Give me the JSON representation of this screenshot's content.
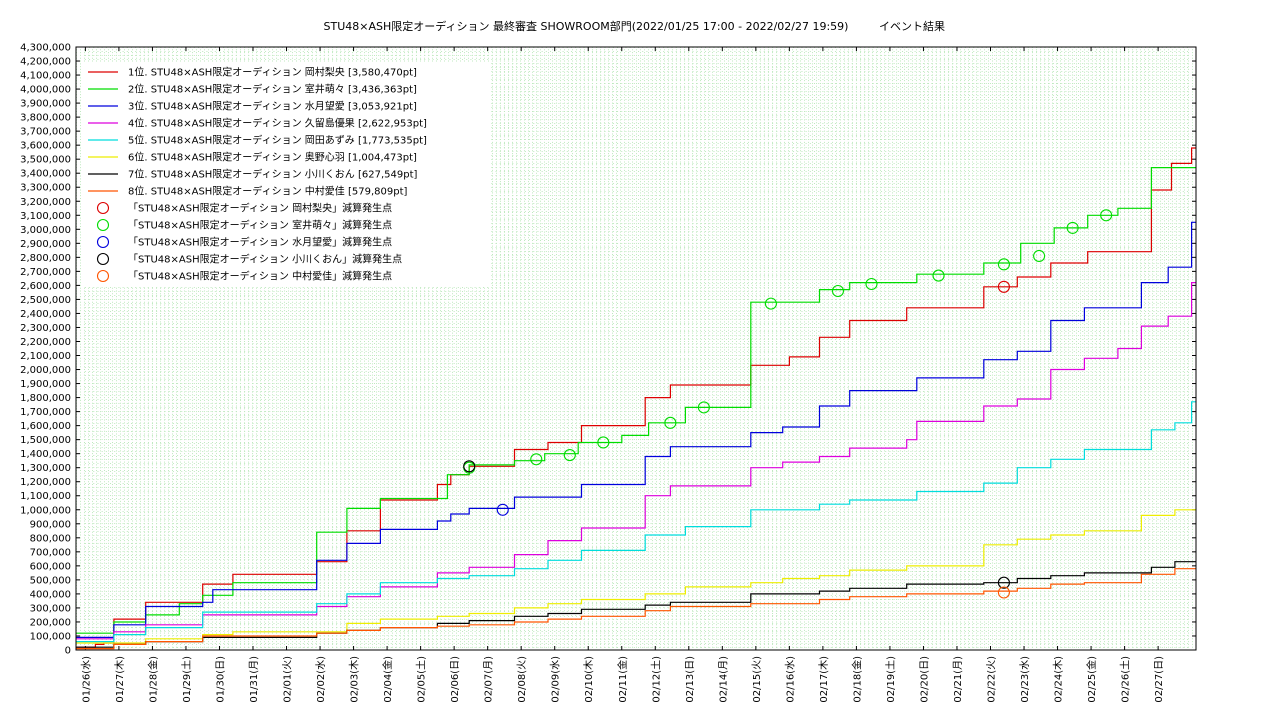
{
  "chart_data": {
    "type": "line",
    "title": "STU48×ASH限定オーディション 最終審査 SHOWROOM部門(2022/01/25 17:00 - 2022/02/27 19:59)",
    "subtitle": "イベント結果",
    "ylim": [
      0,
      4300000
    ],
    "yticks": [
      0,
      100000,
      200000,
      300000,
      400000,
      500000,
      600000,
      700000,
      800000,
      900000,
      1000000,
      1100000,
      1200000,
      1300000,
      1400000,
      1500000,
      1600000,
      1700000,
      1800000,
      1900000,
      2000000,
      2100000,
      2200000,
      2300000,
      2400000,
      2500000,
      2600000,
      2700000,
      2800000,
      2900000,
      3000000,
      3100000,
      3200000,
      3300000,
      3400000,
      3500000,
      3600000,
      3700000,
      3800000,
      3900000,
      4000000,
      4100000,
      4200000,
      4300000
    ],
    "ytick_labels": [
      "0",
      "100,000",
      "200,000",
      "300,000",
      "400,000",
      "500,000",
      "600,000",
      "700,000",
      "800,000",
      "900,000",
      "1,000,000",
      "1,100,000",
      "1,200,000",
      "1,300,000",
      "1,400,000",
      "1,500,000",
      "1,600,000",
      "1,700,000",
      "1,800,000",
      "1,900,000",
      "2,000,000",
      "2,100,000",
      "2,200,000",
      "2,300,000",
      "2,400,000",
      "2,500,000",
      "2,600,000",
      "2,700,000",
      "2,800,000",
      "2,900,000",
      "3,000,000",
      "3,100,000",
      "3,200,000",
      "3,300,000",
      "3,400,000",
      "3,500,000",
      "3,600,000",
      "3,700,000",
      "3,800,000",
      "3,900,000",
      "4,000,000",
      "4,100,000",
      "4,200,000",
      "4,300,000"
    ],
    "xlim": [
      -0.28,
      33.13
    ],
    "xtick_labels": [
      "01/26(水)",
      "01/27(木)",
      "01/28(金)",
      "01/29(土)",
      "01/30(日)",
      "01/31(月)",
      "02/01(火)",
      "02/02(水)",
      "02/03(木)",
      "02/04(金)",
      "02/05(土)",
      "02/06(日)",
      "02/07(月)",
      "02/08(火)",
      "02/09(水)",
      "02/10(木)",
      "02/11(金)",
      "02/12(土)",
      "02/13(日)",
      "02/14(月)",
      "02/15(火)",
      "02/16(水)",
      "02/17(木)",
      "02/18(金)",
      "02/19(土)",
      "02/20(日)",
      "02/21(月)",
      "02/22(火)",
      "02/23(水)",
      "02/24(木)",
      "02/25(金)",
      "02/26(土)",
      "02/27(日)"
    ],
    "grid": true,
    "legend_position": "top-left",
    "series": [
      {
        "name": "1位. STU48×ASH限定オーディション 岡村梨央 [3,580,470pt]",
        "color": "#dd0000",
        "points": [
          [
            -0.28,
            20000
          ],
          [
            0.3,
            40000
          ],
          [
            0.55,
            50000
          ],
          [
            0.85,
            220000
          ],
          [
            1.8,
            340000
          ],
          [
            3.5,
            470000
          ],
          [
            4.4,
            540000
          ],
          [
            6.9,
            630000
          ],
          [
            7.8,
            850000
          ],
          [
            8.8,
            1070000
          ],
          [
            10.5,
            1180000
          ],
          [
            10.9,
            1250000
          ],
          [
            11.45,
            1310000
          ],
          [
            12.8,
            1430000
          ],
          [
            13.8,
            1480000
          ],
          [
            14.8,
            1600000
          ],
          [
            16.7,
            1800000
          ],
          [
            17.45,
            1890000
          ],
          [
            19.85,
            2030000
          ],
          [
            21.0,
            2090000
          ],
          [
            21.9,
            2230000
          ],
          [
            22.8,
            2350000
          ],
          [
            24.5,
            2440000
          ],
          [
            26.8,
            2590000
          ],
          [
            27.8,
            2660000
          ],
          [
            28.8,
            2760000
          ],
          [
            29.9,
            2840000
          ],
          [
            31.8,
            3280000
          ],
          [
            32.4,
            3470000
          ],
          [
            33.0,
            3580000
          ]
        ]
      },
      {
        "name": "2位. STU48×ASH限定オーディション 室井萌々 [3,436,363pt]",
        "color": "#00dd00",
        "points": [
          [
            -0.28,
            120000
          ],
          [
            0.85,
            200000
          ],
          [
            1.8,
            250000
          ],
          [
            2.8,
            330000
          ],
          [
            3.5,
            390000
          ],
          [
            4.4,
            480000
          ],
          [
            6.9,
            840000
          ],
          [
            7.8,
            1010000
          ],
          [
            8.8,
            1080000
          ],
          [
            10.8,
            1250000
          ],
          [
            11.45,
            1320000
          ],
          [
            12.8,
            1350000
          ],
          [
            13.7,
            1400000
          ],
          [
            14.7,
            1480000
          ],
          [
            16.0,
            1530000
          ],
          [
            16.8,
            1620000
          ],
          [
            17.9,
            1730000
          ],
          [
            19.85,
            2480000
          ],
          [
            21.9,
            2570000
          ],
          [
            22.8,
            2620000
          ],
          [
            24.8,
            2680000
          ],
          [
            26.8,
            2760000
          ],
          [
            27.9,
            2900000
          ],
          [
            28.9,
            3010000
          ],
          [
            29.9,
            3100000
          ],
          [
            30.8,
            3150000
          ],
          [
            31.8,
            3440000
          ]
        ]
      },
      {
        "name": "3位. STU48×ASH限定オーディション 水月望愛 [3,053,921pt]",
        "color": "#0000dd",
        "points": [
          [
            -0.28,
            90000
          ],
          [
            0.85,
            180000
          ],
          [
            1.8,
            310000
          ],
          [
            3.5,
            340000
          ],
          [
            3.8,
            430000
          ],
          [
            6.9,
            640000
          ],
          [
            7.8,
            760000
          ],
          [
            8.8,
            860000
          ],
          [
            10.5,
            920000
          ],
          [
            10.9,
            970000
          ],
          [
            11.45,
            1010000
          ],
          [
            12.8,
            1090000
          ],
          [
            14.8,
            1180000
          ],
          [
            16.7,
            1380000
          ],
          [
            17.45,
            1450000
          ],
          [
            19.85,
            1550000
          ],
          [
            20.8,
            1590000
          ],
          [
            21.9,
            1740000
          ],
          [
            22.8,
            1850000
          ],
          [
            24.8,
            1940000
          ],
          [
            26.8,
            2070000
          ],
          [
            27.8,
            2130000
          ],
          [
            28.8,
            2350000
          ],
          [
            29.8,
            2440000
          ],
          [
            31.5,
            2620000
          ],
          [
            32.3,
            2730000
          ],
          [
            33.0,
            3050000
          ]
        ]
      },
      {
        "name": "4位. STU48×ASH限定オーディション 久留島優果 [2,622,953pt]",
        "color": "#dd00dd",
        "points": [
          [
            -0.28,
            80000
          ],
          [
            0.85,
            130000
          ],
          [
            1.8,
            180000
          ],
          [
            3.5,
            250000
          ],
          [
            6.9,
            310000
          ],
          [
            7.8,
            380000
          ],
          [
            8.8,
            450000
          ],
          [
            10.5,
            550000
          ],
          [
            11.45,
            590000
          ],
          [
            12.8,
            680000
          ],
          [
            13.8,
            780000
          ],
          [
            14.8,
            870000
          ],
          [
            16.7,
            1100000
          ],
          [
            17.45,
            1170000
          ],
          [
            19.85,
            1300000
          ],
          [
            20.8,
            1340000
          ],
          [
            21.9,
            1380000
          ],
          [
            22.8,
            1440000
          ],
          [
            24.5,
            1500000
          ],
          [
            24.8,
            1630000
          ],
          [
            26.8,
            1740000
          ],
          [
            27.8,
            1790000
          ],
          [
            28.8,
            2000000
          ],
          [
            29.8,
            2080000
          ],
          [
            30.8,
            2150000
          ],
          [
            31.5,
            2310000
          ],
          [
            32.3,
            2380000
          ],
          [
            33.0,
            2620000
          ]
        ]
      },
      {
        "name": "5位. STU48×ASH限定オーディション 岡田あずみ [1,773,535pt]",
        "color": "#00dddd",
        "points": [
          [
            -0.28,
            60000
          ],
          [
            0.85,
            110000
          ],
          [
            1.8,
            160000
          ],
          [
            3.5,
            270000
          ],
          [
            6.9,
            330000
          ],
          [
            7.8,
            400000
          ],
          [
            8.8,
            480000
          ],
          [
            10.5,
            510000
          ],
          [
            11.45,
            530000
          ],
          [
            12.8,
            580000
          ],
          [
            13.8,
            640000
          ],
          [
            14.8,
            710000
          ],
          [
            16.7,
            820000
          ],
          [
            17.9,
            880000
          ],
          [
            19.85,
            1000000
          ],
          [
            21.9,
            1040000
          ],
          [
            22.8,
            1070000
          ],
          [
            24.8,
            1130000
          ],
          [
            26.8,
            1190000
          ],
          [
            27.8,
            1300000
          ],
          [
            28.8,
            1360000
          ],
          [
            29.8,
            1430000
          ],
          [
            31.8,
            1570000
          ],
          [
            32.5,
            1620000
          ],
          [
            33.0,
            1770000
          ]
        ]
      },
      {
        "name": "6位. STU48×ASH限定オーディション 奥野心羽 [1,004,473pt]",
        "color": "#eeee00",
        "points": [
          [
            -0.28,
            50000
          ],
          [
            1.8,
            80000
          ],
          [
            3.5,
            110000
          ],
          [
            4.4,
            130000
          ],
          [
            7.8,
            190000
          ],
          [
            8.8,
            220000
          ],
          [
            10.5,
            240000
          ],
          [
            11.45,
            260000
          ],
          [
            12.8,
            300000
          ],
          [
            13.8,
            330000
          ],
          [
            14.8,
            360000
          ],
          [
            16.7,
            400000
          ],
          [
            17.9,
            450000
          ],
          [
            19.85,
            480000
          ],
          [
            20.8,
            510000
          ],
          [
            21.9,
            530000
          ],
          [
            22.8,
            570000
          ],
          [
            24.5,
            600000
          ],
          [
            26.8,
            750000
          ],
          [
            27.8,
            790000
          ],
          [
            28.8,
            820000
          ],
          [
            29.8,
            850000
          ],
          [
            31.5,
            960000
          ],
          [
            32.5,
            1000000
          ]
        ]
      },
      {
        "name": "7位. STU48×ASH限定オーディション 小川くおん [627,549pt]",
        "color": "#000000",
        "points": [
          [
            -0.28,
            20000
          ],
          [
            0.85,
            40000
          ],
          [
            1.8,
            60000
          ],
          [
            3.5,
            90000
          ],
          [
            6.9,
            120000
          ],
          [
            7.8,
            140000
          ],
          [
            8.8,
            160000
          ],
          [
            10.5,
            190000
          ],
          [
            11.45,
            210000
          ],
          [
            12.8,
            240000
          ],
          [
            13.8,
            260000
          ],
          [
            14.8,
            290000
          ],
          [
            16.7,
            320000
          ],
          [
            17.45,
            340000
          ],
          [
            19.85,
            400000
          ],
          [
            21.9,
            420000
          ],
          [
            22.8,
            440000
          ],
          [
            24.5,
            470000
          ],
          [
            26.8,
            480000
          ],
          [
            27.8,
            510000
          ],
          [
            28.8,
            530000
          ],
          [
            29.8,
            550000
          ],
          [
            31.8,
            590000
          ],
          [
            32.5,
            630000
          ]
        ]
      },
      {
        "name": "8位. STU48×ASH限定オーディション 中村愛佳 [579,809pt]",
        "color": "#ff5500",
        "points": [
          [
            -0.28,
            10000
          ],
          [
            0.85,
            40000
          ],
          [
            1.8,
            60000
          ],
          [
            3.5,
            100000
          ],
          [
            6.9,
            120000
          ],
          [
            7.8,
            140000
          ],
          [
            8.8,
            160000
          ],
          [
            10.5,
            170000
          ],
          [
            11.45,
            180000
          ],
          [
            12.8,
            200000
          ],
          [
            13.8,
            220000
          ],
          [
            14.8,
            240000
          ],
          [
            16.7,
            280000
          ],
          [
            17.45,
            310000
          ],
          [
            19.85,
            330000
          ],
          [
            21.9,
            360000
          ],
          [
            22.8,
            380000
          ],
          [
            24.5,
            400000
          ],
          [
            26.8,
            420000
          ],
          [
            27.8,
            440000
          ],
          [
            28.8,
            470000
          ],
          [
            29.8,
            480000
          ],
          [
            31.5,
            540000
          ],
          [
            32.5,
            580000
          ]
        ]
      }
    ],
    "markers": [
      {
        "name": "「STU48×ASH限定オーディション 岡村梨央」減算発生点",
        "color": "#dd0000",
        "points": [
          [
            27.4,
            2590000
          ]
        ]
      },
      {
        "name": "「STU48×ASH限定オーディション 室井萌々」減算発生点",
        "color": "#00dd00",
        "points": [
          [
            11.45,
            1300000
          ],
          [
            13.45,
            1360000
          ],
          [
            14.45,
            1390000
          ],
          [
            15.45,
            1480000
          ],
          [
            17.45,
            1620000
          ],
          [
            18.45,
            1730000
          ],
          [
            20.45,
            2470000
          ],
          [
            22.45,
            2560000
          ],
          [
            23.45,
            2610000
          ],
          [
            25.45,
            2670000
          ],
          [
            27.4,
            2750000
          ],
          [
            28.45,
            2810000
          ],
          [
            29.45,
            3010000
          ],
          [
            30.45,
            3100000
          ]
        ]
      },
      {
        "name": "「STU48×ASH限定オーディション 水月望愛」減算発生点",
        "color": "#0000dd",
        "points": [
          [
            12.45,
            1000000
          ]
        ]
      },
      {
        "name": "「STU48×ASH限定オーディション 小川くおん」減算発生点",
        "color": "#000000",
        "points": [
          [
            11.45,
            1310000
          ],
          [
            27.4,
            480000
          ]
        ]
      },
      {
        "name": "「STU48×ASH限定オーディション 中村愛佳」減算発生点",
        "color": "#ff5500",
        "points": [
          [
            27.4,
            410000
          ]
        ]
      }
    ]
  }
}
